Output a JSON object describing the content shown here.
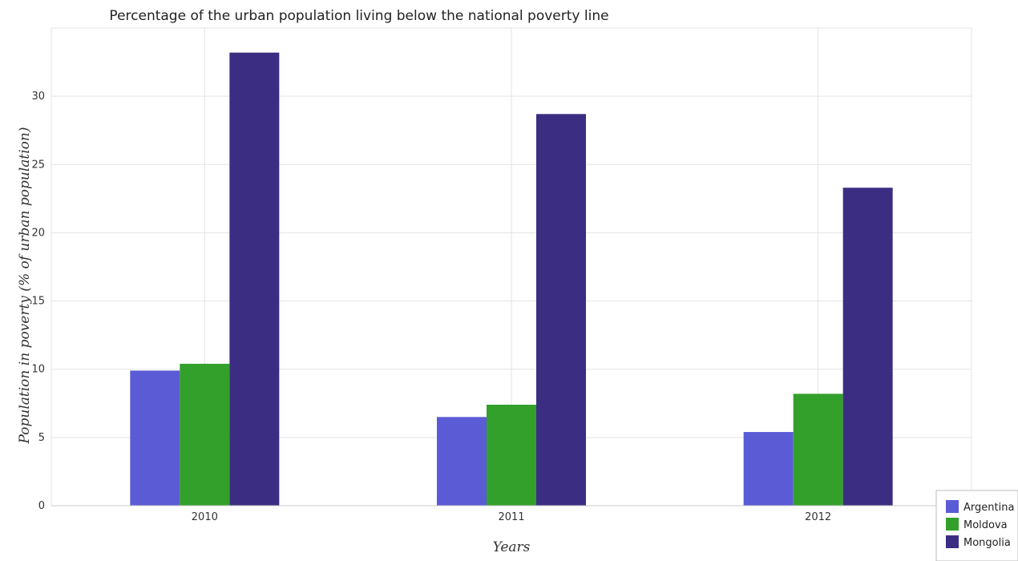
{
  "chart_data": {
    "type": "bar",
    "title": "Percentage of the urban population living below the national poverty line",
    "xlabel": "Years",
    "ylabel": "Population in poverty (% of urban population)",
    "categories": [
      "2010",
      "2011",
      "2012"
    ],
    "series": [
      {
        "name": "Argentina",
        "color": "#5b5bd6",
        "values": [
          9.9,
          6.5,
          5.4
        ]
      },
      {
        "name": "Moldova",
        "color": "#33a02c",
        "values": [
          10.4,
          7.4,
          8.2
        ]
      },
      {
        "name": "Mongolia",
        "color": "#3b2e82",
        "values": [
          33.2,
          28.7,
          23.3
        ]
      }
    ],
    "ylim": [
      0,
      35
    ],
    "yticks": [
      "0",
      "5",
      "10",
      "15",
      "20",
      "25",
      "30"
    ],
    "grid": true,
    "legend_position": "bottom-right"
  }
}
